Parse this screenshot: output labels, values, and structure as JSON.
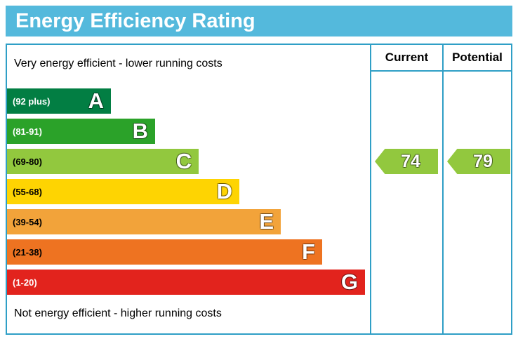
{
  "title": "Energy Efficiency Rating",
  "header": {
    "current": "Current",
    "potential": "Potential"
  },
  "notes": {
    "top": "Very energy efficient - lower running costs",
    "bottom": "Not energy efficient - higher running costs"
  },
  "colors": {
    "header_bg": "#54b9dc",
    "border": "#2f9fc6"
  },
  "chart_data": {
    "type": "bar",
    "title": "Energy Efficiency Rating",
    "orientation": "horizontal",
    "bands": [
      {
        "letter": "A",
        "range": "(92 plus)",
        "color": "#027e43",
        "text_color": "#ffffff"
      },
      {
        "letter": "B",
        "range": "(81-91)",
        "color": "#2ba229",
        "text_color": "#ffffff"
      },
      {
        "letter": "C",
        "range": "(69-80)",
        "color": "#92c83e",
        "text_color": "#000000"
      },
      {
        "letter": "D",
        "range": "(55-68)",
        "color": "#fed402",
        "text_color": "#000000"
      },
      {
        "letter": "E",
        "range": "(39-54)",
        "color": "#f2a33a",
        "text_color": "#000000"
      },
      {
        "letter": "F",
        "range": "(21-38)",
        "color": "#ee7321",
        "text_color": "#000000"
      },
      {
        "letter": "G",
        "range": "(1-20)",
        "color": "#e2231d",
        "text_color": "#ffffff"
      }
    ],
    "current": {
      "value": 74,
      "band": "C",
      "color": "#92c83e"
    },
    "potential": {
      "value": 79,
      "band": "C",
      "color": "#92c83e"
    }
  }
}
